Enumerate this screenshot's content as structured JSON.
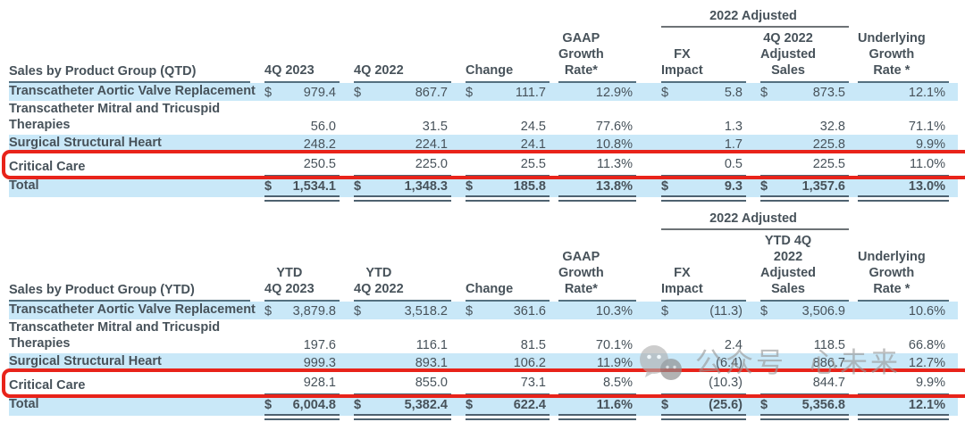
{
  "currency_symbol": "$",
  "colors": {
    "highlight_band": "#c9e8f8",
    "header_rule": "#54707f",
    "total_rule": "#4e6270",
    "spanner_rule": "#6d7276",
    "callout_red": "#e8231a",
    "text": "#47525a"
  },
  "watermark": {
    "icon": "wechat-icon",
    "text_left": "公众号",
    "text_right": "心未来"
  },
  "tables": [
    {
      "label_header": "Sales by Product Group (QTD)",
      "group_header": "2022 Adjusted",
      "columns": [
        "4Q 2023",
        "4Q 2022",
        "Change",
        "GAAP\nGrowth\nRate*",
        "FX\nImpact",
        "4Q 2022\nAdjusted\nSales",
        "Underlying\nGrowth\nRate *"
      ],
      "rows": [
        {
          "label": "Transcatheter Aortic Valve Replacement",
          "highlight": true,
          "dollar": true,
          "values": [
            "979.4",
            "867.7",
            "111.7",
            "12.9%",
            "5.8",
            "873.5",
            "12.1%"
          ]
        },
        {
          "label": "Transcatheter Mitral and Tricuspid",
          "label2": "Therapies",
          "values": [
            "56.0",
            "31.5",
            "24.5",
            "77.6%",
            "1.3",
            "32.8",
            "71.1%"
          ]
        },
        {
          "label": "Surgical Structural Heart",
          "highlight": true,
          "values": [
            "248.2",
            "224.1",
            "24.1",
            "10.8%",
            "1.7",
            "225.8",
            "9.9%"
          ]
        },
        {
          "label": "Critical Care",
          "critical": true,
          "values": [
            "250.5",
            "225.0",
            "25.5",
            "11.3%",
            "0.5",
            "225.5",
            "11.0%"
          ]
        },
        {
          "label": "Total",
          "total": true,
          "highlight": true,
          "dollar": true,
          "values": [
            "1,534.1",
            "1,348.3",
            "185.8",
            "13.8%",
            "9.3",
            "1,357.6",
            "13.0%"
          ]
        }
      ]
    },
    {
      "label_header": "Sales by Product Group (YTD)",
      "group_header": "2022 Adjusted",
      "columns": [
        "YTD\n4Q 2023",
        "YTD\n4Q 2022",
        "Change",
        "GAAP\nGrowth\nRate*",
        "FX\nImpact",
        "YTD 4Q\n2022\nAdjusted\nSales",
        "Underlying\nGrowth\nRate *"
      ],
      "rows": [
        {
          "label": "Transcatheter Aortic Valve Replacement",
          "highlight": true,
          "dollar": true,
          "values": [
            "3,879.8",
            "3,518.2",
            "361.6",
            "10.3%",
            "(11.3)",
            "3,506.9",
            "10.6%"
          ]
        },
        {
          "label": "Transcatheter Mitral and Tricuspid",
          "label2": "Therapies",
          "values": [
            "197.6",
            "116.1",
            "81.5",
            "70.1%",
            "2.4",
            "118.5",
            "66.8%"
          ]
        },
        {
          "label": "Surgical Structural Heart",
          "highlight": true,
          "values": [
            "999.3",
            "893.1",
            "106.2",
            "11.9%",
            "(6.4)",
            "886.7",
            "12.7%"
          ]
        },
        {
          "label": "Critical Care",
          "critical": true,
          "values": [
            "928.1",
            "855.0",
            "73.1",
            "8.5%",
            "(10.3)",
            "844.7",
            "9.9%"
          ]
        },
        {
          "label": "Total",
          "total": true,
          "highlight": true,
          "dollar": true,
          "values": [
            "6,004.8",
            "5,382.4",
            "622.4",
            "11.6%",
            "(25.6)",
            "5,356.8",
            "12.1%"
          ]
        }
      ]
    }
  ]
}
